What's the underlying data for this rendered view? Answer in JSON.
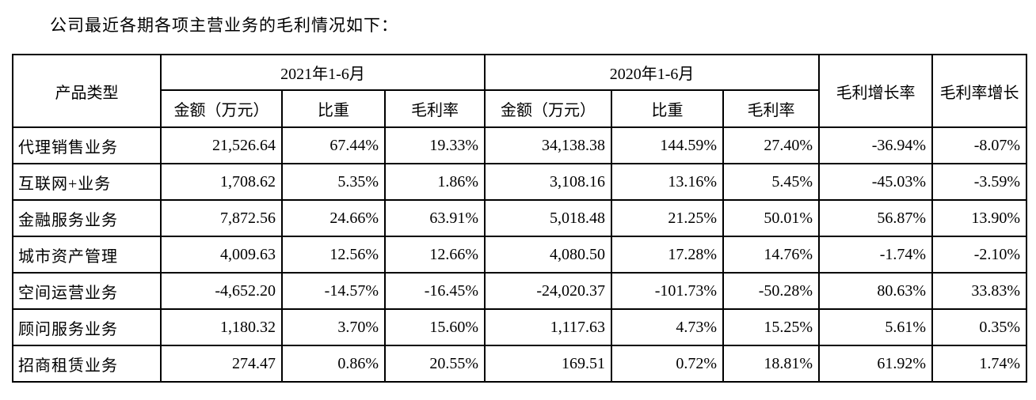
{
  "title": "公司最近各期各项主营业务的毛利情况如下：",
  "table": {
    "header": {
      "product_type": "产品类型",
      "period_2021": "2021年1-6月",
      "period_2020": "2020年1-6月",
      "gross_profit_growth": "毛利增长率",
      "gross_margin_growth": "毛利率增长",
      "sub": [
        "金额（万元）",
        "比重",
        "毛利率",
        "金额（万元）",
        "比重",
        "毛利率"
      ]
    },
    "rows": [
      {
        "product": "代理销售业务",
        "amount_2021": "21,526.64",
        "weight_2021": "67.44%",
        "margin_2021": "19.33%",
        "amount_2020": "34,138.38",
        "weight_2020": "144.59%",
        "margin_2020": "27.40%",
        "profit_growth": "-36.94%",
        "margin_growth": "-8.07%"
      },
      {
        "product": "互联网+业务",
        "amount_2021": "1,708.62",
        "weight_2021": "5.35%",
        "margin_2021": "1.86%",
        "amount_2020": "3,108.16",
        "weight_2020": "13.16%",
        "margin_2020": "5.45%",
        "profit_growth": "-45.03%",
        "margin_growth": "-3.59%"
      },
      {
        "product": "金融服务业务",
        "amount_2021": "7,872.56",
        "weight_2021": "24.66%",
        "margin_2021": "63.91%",
        "amount_2020": "5,018.48",
        "weight_2020": "21.25%",
        "margin_2020": "50.01%",
        "profit_growth": "56.87%",
        "margin_growth": "13.90%"
      },
      {
        "product": "城市资产管理",
        "amount_2021": "4,009.63",
        "weight_2021": "12.56%",
        "margin_2021": "12.66%",
        "amount_2020": "4,080.50",
        "weight_2020": "17.28%",
        "margin_2020": "14.76%",
        "profit_growth": "-1.74%",
        "margin_growth": "-2.10%"
      },
      {
        "product": "空间运营业务",
        "amount_2021": "-4,652.20",
        "weight_2021": "-14.57%",
        "margin_2021": "-16.45%",
        "amount_2020": "-24,020.37",
        "weight_2020": "-101.73%",
        "margin_2020": "-50.28%",
        "profit_growth": "80.63%",
        "margin_growth": "33.83%"
      },
      {
        "product": "顾问服务业务",
        "amount_2021": "1,180.32",
        "weight_2021": "3.70%",
        "margin_2021": "15.60%",
        "amount_2020": "1,117.63",
        "weight_2020": "4.73%",
        "margin_2020": "15.25%",
        "profit_growth": "5.61%",
        "margin_growth": "0.35%"
      },
      {
        "product": "招商租赁业务",
        "amount_2021": "274.47",
        "weight_2021": "0.86%",
        "margin_2021": "20.55%",
        "amount_2020": "169.51",
        "weight_2020": "0.72%",
        "margin_2020": "18.81%",
        "profit_growth": "61.92%",
        "margin_growth": "1.74%"
      }
    ]
  }
}
